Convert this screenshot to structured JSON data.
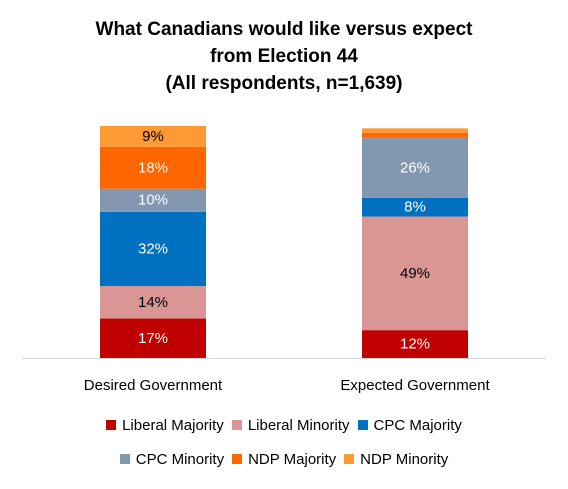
{
  "chart_data": {
    "type": "bar",
    "stacked": true,
    "title_lines": [
      "What Canadians would like versus expect",
      "from Election 44",
      "(All respondents, n=1,639)"
    ],
    "xlabel": "",
    "ylabel": "",
    "ylim": [
      0,
      100
    ],
    "grid": false,
    "legend_position": "bottom",
    "categories": [
      "Desired Government",
      "Expected Government"
    ],
    "series": [
      {
        "name": "Liberal Majority",
        "color": "#C00000",
        "values": [
          17,
          12
        ],
        "labels": [
          "17%",
          "12%"
        ],
        "label_color": "#FFFFFF"
      },
      {
        "name": "Liberal Minority",
        "color": "#DA9694",
        "values": [
          14,
          49
        ],
        "labels": [
          "14%",
          "49%"
        ],
        "label_color": "#000000"
      },
      {
        "name": "CPC Majority",
        "color": "#0070C0",
        "values": [
          32,
          8
        ],
        "labels": [
          "32%",
          "8%"
        ],
        "label_color": "#FFFFFF"
      },
      {
        "name": "CPC Minority",
        "color": "#8497B0",
        "values": [
          10,
          26
        ],
        "labels": [
          "10%",
          "26%"
        ],
        "label_color": "#FFFFFF"
      },
      {
        "name": "NDP Majority",
        "color": "#FF6600",
        "values": [
          18,
          2
        ],
        "labels": [
          "18%",
          ""
        ],
        "label_color": "#FFFFFF"
      },
      {
        "name": "NDP Minority",
        "color": "#FF9933",
        "values": [
          9,
          2
        ],
        "labels": [
          "9%",
          ""
        ],
        "label_color": "#000000"
      }
    ],
    "legend_rows": [
      [
        "Liberal Majority",
        "Liberal Minority",
        "CPC Majority"
      ],
      [
        "CPC Minority",
        "NDP Majority",
        "NDP Minority"
      ]
    ]
  }
}
